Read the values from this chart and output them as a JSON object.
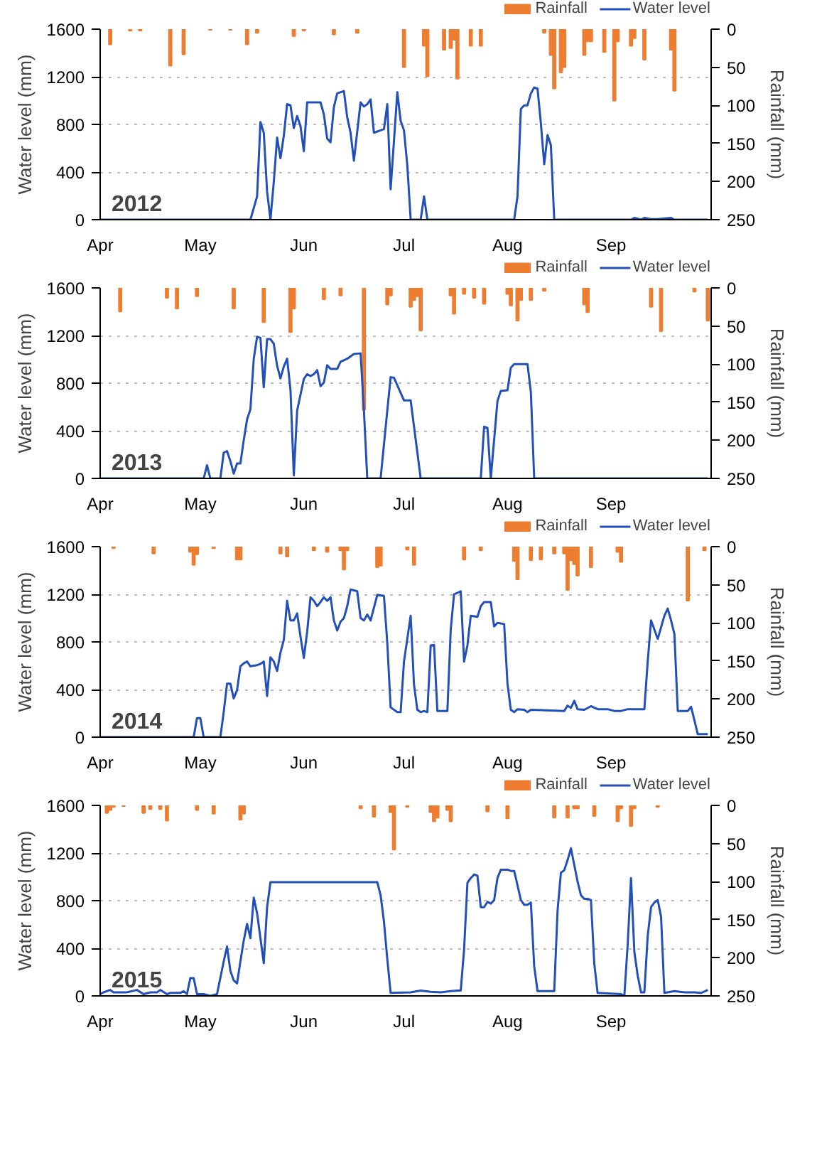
{
  "chart_data": [
    {
      "type": "line",
      "annotations": [
        "2012"
      ],
      "ylabel": "Water level (mm)",
      "y2label": "Rainfall (mm)",
      "xlim": [
        "2012-04-01",
        "2012-10-01"
      ],
      "xticks": [
        {
          "value": "2012-04-01",
          "label": "Apr"
        },
        {
          "value": "2012-05-01",
          "label": "May"
        },
        {
          "value": "2012-06-01",
          "label": "Jun"
        },
        {
          "value": "2012-07-01",
          "label": "Jul"
        },
        {
          "value": "2012-08-01",
          "label": "Aug"
        },
        {
          "value": "2012-09-01",
          "label": "Sep"
        }
      ],
      "ylim": [
        0,
        1600
      ],
      "yticks": [
        0,
        400,
        800,
        1200,
        1600
      ],
      "y2lim": [
        250,
        0
      ],
      "y2ticks": [
        0,
        50,
        100,
        150,
        200,
        250
      ],
      "grid": "y",
      "legend": "top right",
      "series": [
        {
          "name": "Rainfall",
          "type": "bar",
          "axis": "y2",
          "color": "#ed7d31",
          "x": [
            "2012-04-04",
            "2012-04-10",
            "2012-04-13",
            "2012-04-22",
            "2012-04-26",
            "2012-05-04",
            "2012-05-10",
            "2012-05-15",
            "2012-05-18",
            "2012-05-29",
            "2012-06-01",
            "2012-06-10",
            "2012-06-17",
            "2012-07-01",
            "2012-07-07",
            "2012-07-08",
            "2012-07-13",
            "2012-07-15",
            "2012-07-16",
            "2012-07-17",
            "2012-07-21",
            "2012-07-24",
            "2012-08-12",
            "2012-08-14",
            "2012-08-15",
            "2012-08-17",
            "2012-08-18",
            "2012-08-24",
            "2012-08-25",
            "2012-08-26",
            "2012-08-30",
            "2012-09-02",
            "2012-09-03",
            "2012-09-07",
            "2012-09-08",
            "2012-09-11",
            "2012-09-19",
            "2012-09-20"
          ],
          "values": [
            20,
            2,
            2,
            48,
            33,
            1,
            1,
            20,
            5,
            9,
            2,
            7,
            5,
            50,
            22,
            62,
            27,
            25,
            14,
            65,
            22,
            22,
            5,
            34,
            78,
            57,
            50,
            34,
            16,
            16,
            30,
            94,
            16,
            22,
            12,
            40,
            27,
            81
          ]
        },
        {
          "name": "Water level",
          "color": "#2250b8",
          "x": [
            "2012-04-01",
            "2012-05-16",
            "2012-05-18",
            "2012-05-19",
            "2012-05-20",
            "2012-05-21",
            "2012-05-22",
            "2012-05-23",
            "2012-05-24",
            "2012-05-25",
            "2012-05-26",
            "2012-05-27",
            "2012-05-28",
            "2012-05-29",
            "2012-05-30",
            "2012-05-31",
            "2012-06-01",
            "2012-06-02",
            "2012-06-06",
            "2012-06-07",
            "2012-06-08",
            "2012-06-09",
            "2012-06-10",
            "2012-06-11",
            "2012-06-13",
            "2012-06-14",
            "2012-06-15",
            "2012-06-16",
            "2012-06-18",
            "2012-06-19",
            "2012-06-20",
            "2012-06-21",
            "2012-06-22",
            "2012-06-25",
            "2012-06-26",
            "2012-06-27",
            "2012-06-29",
            "2012-06-30",
            "2012-07-01",
            "2012-07-02",
            "2012-07-03",
            "2012-07-06",
            "2012-07-07",
            "2012-07-08",
            "2012-08-03",
            "2012-08-04",
            "2012-08-05",
            "2012-08-06",
            "2012-08-07",
            "2012-08-08",
            "2012-08-09",
            "2012-08-10",
            "2012-08-11",
            "2012-08-12",
            "2012-08-13",
            "2012-08-14",
            "2012-08-15",
            "2012-09-07",
            "2012-09-08",
            "2012-09-10",
            "2012-09-11",
            "2012-09-13",
            "2012-09-15",
            "2012-09-19",
            "2012-09-20",
            "2012-09-30"
          ],
          "values": [
            0,
            0,
            195,
            820,
            730,
            235,
            0,
            315,
            690,
            515,
            705,
            970,
            960,
            770,
            870,
            785,
            575,
            985,
            985,
            885,
            680,
            650,
            945,
            1060,
            1080,
            860,
            730,
            495,
            985,
            950,
            970,
            1010,
            730,
            760,
            970,
            255,
            1070,
            830,
            750,
            455,
            0,
            0,
            195,
            0,
            0,
            195,
            930,
            960,
            960,
            1060,
            1110,
            1100,
            810,
            465,
            710,
            625,
            0,
            0,
            15,
            0,
            15,
            5,
            5,
            15,
            0,
            0
          ]
        }
      ]
    },
    {
      "type": "line",
      "annotations": [
        "2013"
      ],
      "ylabel": "Water level (mm)",
      "y2label": "Rainfall (mm)",
      "xlim": [
        "2013-04-01",
        "2013-10-01"
      ],
      "xticks": [
        {
          "value": "2013-04-01",
          "label": "Apr"
        },
        {
          "value": "2013-05-01",
          "label": "May"
        },
        {
          "value": "2013-06-01",
          "label": "Jun"
        },
        {
          "value": "2013-07-01",
          "label": "Jul"
        },
        {
          "value": "2013-08-01",
          "label": "Aug"
        },
        {
          "value": "2013-09-01",
          "label": "Sep"
        }
      ],
      "ylim": [
        0,
        1600
      ],
      "yticks": [
        0,
        400,
        800,
        1200,
        1600
      ],
      "y2lim": [
        250,
        0
      ],
      "y2ticks": [
        0,
        50,
        100,
        150,
        200,
        250
      ],
      "grid": "y",
      "legend": "top right",
      "series": [
        {
          "name": "Rainfall",
          "type": "bar",
          "axis": "y2",
          "color": "#ed7d31",
          "x": [
            "2013-04-07",
            "2013-04-21",
            "2013-04-24",
            "2013-04-30",
            "2013-05-11",
            "2013-05-20",
            "2013-05-28",
            "2013-05-29",
            "2013-06-07",
            "2013-06-12",
            "2013-06-19",
            "2013-06-26",
            "2013-06-27",
            "2013-07-03",
            "2013-07-04",
            "2013-07-05",
            "2013-07-06",
            "2013-07-15",
            "2013-07-16",
            "2013-07-19",
            "2013-07-22",
            "2013-07-25",
            "2013-08-01",
            "2013-08-02",
            "2013-08-04",
            "2013-08-05",
            "2013-08-08",
            "2013-08-12",
            "2013-08-24",
            "2013-08-25",
            "2013-09-13",
            "2013-09-16",
            "2013-09-26",
            "2013-09-30"
          ],
          "values": [
            31,
            13,
            27,
            11,
            27,
            45,
            58,
            27,
            15,
            10,
            160,
            22,
            10,
            25,
            16,
            11,
            56,
            10,
            34,
            8,
            13,
            21,
            8,
            23,
            43,
            16,
            16,
            4,
            22,
            32,
            25,
            57,
            5,
            43
          ]
        },
        {
          "name": "Water level",
          "color": "#2250b8",
          "x": [
            "2013-04-01",
            "2013-05-02",
            "2013-05-03",
            "2013-05-04",
            "2013-05-07",
            "2013-05-08",
            "2013-05-09",
            "2013-05-10",
            "2013-05-11",
            "2013-05-12",
            "2013-05-13",
            "2013-05-14",
            "2013-05-15",
            "2013-05-16",
            "2013-05-17",
            "2013-05-18",
            "2013-05-19",
            "2013-05-20",
            "2013-05-21",
            "2013-05-22",
            "2013-05-23",
            "2013-05-24",
            "2013-05-25",
            "2013-05-26",
            "2013-05-27",
            "2013-05-28",
            "2013-05-29",
            "2013-05-30",
            "2013-06-01",
            "2013-06-02",
            "2013-06-03",
            "2013-06-04",
            "2013-06-05",
            "2013-06-06",
            "2013-06-07",
            "2013-06-08",
            "2013-06-09",
            "2013-06-11",
            "2013-06-12",
            "2013-06-14",
            "2013-06-16",
            "2013-06-18",
            "2013-06-19",
            "2013-06-20",
            "2013-06-24",
            "2013-06-26",
            "2013-06-27",
            "2013-06-28",
            "2013-07-01",
            "2013-07-03",
            "2013-07-06",
            "2013-07-24",
            "2013-07-25",
            "2013-07-26",
            "2013-07-27",
            "2013-07-29",
            "2013-07-30",
            "2013-08-01",
            "2013-08-02",
            "2013-08-03",
            "2013-08-07",
            "2013-08-08",
            "2013-08-09",
            "2013-09-30"
          ],
          "values": [
            0,
            0,
            110,
            0,
            0,
            215,
            230,
            145,
            40,
            125,
            125,
            320,
            495,
            580,
            1005,
            1190,
            1180,
            765,
            1170,
            1170,
            1130,
            945,
            840,
            940,
            1005,
            745,
            25,
            570,
            835,
            875,
            860,
            875,
            910,
            775,
            805,
            950,
            920,
            920,
            980,
            1005,
            1045,
            1050,
            570,
            0,
            0,
            570,
            850,
            845,
            655,
            655,
            0,
            0,
            435,
            425,
            0,
            650,
            735,
            740,
            930,
            960,
            960,
            725,
            0,
            0
          ]
        }
      ]
    },
    {
      "type": "line",
      "annotations": [
        "2014"
      ],
      "ylabel": "Water level (mm)",
      "y2label": "Rainfall (mm)",
      "xlim": [
        "2014-04-01",
        "2014-10-01"
      ],
      "xticks": [
        {
          "value": "2014-04-01",
          "label": "Apr"
        },
        {
          "value": "2014-05-01",
          "label": "May"
        },
        {
          "value": "2014-06-01",
          "label": "Jun"
        },
        {
          "value": "2014-07-01",
          "label": "Jul"
        },
        {
          "value": "2014-08-01",
          "label": "Aug"
        },
        {
          "value": "2014-09-01",
          "label": "Sep"
        }
      ],
      "ylim": [
        0,
        1600
      ],
      "yticks": [
        0,
        400,
        800,
        1200,
        1600
      ],
      "y2lim": [
        250,
        0
      ],
      "y2ticks": [
        0,
        50,
        100,
        150,
        200,
        250
      ],
      "grid": "y",
      "legend": "top right",
      "series": [
        {
          "name": "Rainfall",
          "type": "bar",
          "axis": "y2",
          "color": "#ed7d31",
          "x": [
            "2014-04-05",
            "2014-04-17",
            "2014-04-28",
            "2014-04-29",
            "2014-04-30",
            "2014-05-05",
            "2014-05-12",
            "2014-05-13",
            "2014-05-25",
            "2014-05-27",
            "2014-06-04",
            "2014-06-08",
            "2014-06-12",
            "2014-06-13",
            "2014-06-14",
            "2014-06-23",
            "2014-06-24",
            "2014-07-02",
            "2014-07-04",
            "2014-07-19",
            "2014-07-24",
            "2014-08-03",
            "2014-08-04",
            "2014-08-08",
            "2014-08-11",
            "2014-08-15",
            "2014-08-18",
            "2014-08-19",
            "2014-08-20",
            "2014-08-21",
            "2014-08-22",
            "2014-08-26",
            "2014-09-03",
            "2014-09-04",
            "2014-09-24",
            "2014-09-29"
          ],
          "values": [
            2,
            9,
            7,
            24,
            10,
            2,
            17,
            17,
            9,
            13,
            5,
            7,
            5,
            30,
            5,
            27,
            25,
            4,
            24,
            17,
            5,
            19,
            43,
            18,
            17,
            9,
            9,
            57,
            18,
            23,
            38,
            27,
            7,
            20,
            71,
            5
          ]
        },
        {
          "name": "Water level",
          "color": "#2250b8",
          "x": [
            "2014-04-01",
            "2014-04-29",
            "2014-04-30",
            "2014-05-01",
            "2014-05-02",
            "2014-05-07",
            "2014-05-08",
            "2014-05-09",
            "2014-05-10",
            "2014-05-11",
            "2014-05-12",
            "2014-05-13",
            "2014-05-14",
            "2014-05-15",
            "2014-05-16",
            "2014-05-18",
            "2014-05-19",
            "2014-05-20",
            "2014-05-21",
            "2014-05-22",
            "2014-05-23",
            "2014-05-24",
            "2014-05-25",
            "2014-05-26",
            "2014-05-27",
            "2014-05-28",
            "2014-05-29",
            "2014-05-30",
            "2014-05-31",
            "2014-06-01",
            "2014-06-02",
            "2014-06-03",
            "2014-06-04",
            "2014-06-05",
            "2014-06-06",
            "2014-06-07",
            "2014-06-08",
            "2014-06-09",
            "2014-06-10",
            "2014-06-11",
            "2014-06-12",
            "2014-06-13",
            "2014-06-14",
            "2014-06-15",
            "2014-06-17",
            "2014-06-18",
            "2014-06-19",
            "2014-06-20",
            "2014-06-21",
            "2014-06-23",
            "2014-06-25",
            "2014-06-26",
            "2014-06-27",
            "2014-06-29",
            "2014-06-30",
            "2014-07-01",
            "2014-07-03",
            "2014-07-04",
            "2014-07-05",
            "2014-07-06",
            "2014-07-07",
            "2014-07-08",
            "2014-07-09",
            "2014-07-10",
            "2014-07-11",
            "2014-07-14",
            "2014-07-15",
            "2014-07-16",
            "2014-07-18",
            "2014-07-19",
            "2014-07-20",
            "2014-07-21",
            "2014-07-23",
            "2014-07-24",
            "2014-07-25",
            "2014-07-27",
            "2014-07-28",
            "2014-07-29",
            "2014-07-31",
            "2014-08-01",
            "2014-08-02",
            "2014-08-03",
            "2014-08-04",
            "2014-08-06",
            "2014-08-07",
            "2014-08-08",
            "2014-08-18",
            "2014-08-19",
            "2014-08-20",
            "2014-08-21",
            "2014-08-22",
            "2014-08-24",
            "2014-08-26",
            "2014-08-28",
            "2014-08-31",
            "2014-09-02",
            "2014-09-04",
            "2014-09-06",
            "2014-09-11",
            "2014-09-12",
            "2014-09-13",
            "2014-09-15",
            "2014-09-17",
            "2014-09-18",
            "2014-09-19",
            "2014-09-20",
            "2014-09-21",
            "2014-09-24",
            "2014-09-25",
            "2014-09-27",
            "2014-09-30"
          ],
          "values": [
            0,
            0,
            160,
            160,
            0,
            0,
            210,
            450,
            450,
            325,
            395,
            595,
            620,
            635,
            595,
            605,
            615,
            635,
            345,
            670,
            635,
            555,
            710,
            815,
            1145,
            980,
            980,
            1040,
            845,
            665,
            885,
            1175,
            1145,
            1100,
            1135,
            1175,
            1145,
            1175,
            980,
            895,
            970,
            1000,
            1100,
            1240,
            1225,
            1000,
            980,
            1030,
            980,
            1195,
            1185,
            790,
            250,
            210,
            210,
            635,
            1020,
            440,
            230,
            210,
            220,
            210,
            770,
            775,
            220,
            220,
            905,
            1200,
            1225,
            635,
            770,
            1020,
            1010,
            1100,
            1135,
            1135,
            930,
            960,
            950,
            450,
            230,
            210,
            235,
            230,
            210,
            230,
            220,
            265,
            245,
            305,
            235,
            230,
            260,
            235,
            235,
            220,
            220,
            235,
            235,
            635,
            980,
            825,
            1020,
            1080,
            980,
            865,
            220,
            220,
            255,
            25,
            25
          ]
        }
      ]
    },
    {
      "type": "line",
      "annotations": [
        "2015"
      ],
      "ylabel": "Water level (mm)",
      "y2label": "Rainfall (mm)",
      "xlim": [
        "2015-04-01",
        "2015-10-01"
      ],
      "xticks": [
        {
          "value": "2015-04-01",
          "label": "Apr"
        },
        {
          "value": "2015-05-01",
          "label": "May"
        },
        {
          "value": "2015-06-01",
          "label": "Jun"
        },
        {
          "value": "2015-07-01",
          "label": "Jul"
        },
        {
          "value": "2015-08-01",
          "label": "Aug"
        },
        {
          "value": "2015-09-01",
          "label": "Sep"
        }
      ],
      "ylim": [
        0,
        1600
      ],
      "yticks": [
        0,
        400,
        800,
        1200,
        1600
      ],
      "y2lim": [
        250,
        0
      ],
      "y2ticks": [
        0,
        50,
        100,
        150,
        200,
        250
      ],
      "grid": "y",
      "legend": "top right",
      "series": [
        {
          "name": "Rainfall",
          "type": "bar",
          "axis": "y2",
          "color": "#ed7d31",
          "x": [
            "2015-04-03",
            "2015-04-04",
            "2015-04-05",
            "2015-04-08",
            "2015-04-14",
            "2015-04-16",
            "2015-04-19",
            "2015-04-21",
            "2015-04-30",
            "2015-05-05",
            "2015-05-13",
            "2015-05-14",
            "2015-06-18",
            "2015-06-22",
            "2015-06-27",
            "2015-06-28",
            "2015-07-02",
            "2015-07-09",
            "2015-07-10",
            "2015-07-11",
            "2015-07-14",
            "2015-07-15",
            "2015-07-26",
            "2015-08-01",
            "2015-08-15",
            "2015-08-19",
            "2015-08-21",
            "2015-08-22",
            "2015-08-27",
            "2015-09-03",
            "2015-09-04",
            "2015-09-07",
            "2015-09-08",
            "2015-09-15"
          ],
          "values": [
            10,
            6,
            2,
            1,
            10,
            5,
            5,
            20,
            6,
            11,
            19,
            11,
            4,
            15,
            9,
            58,
            2,
            9,
            21,
            16,
            6,
            21,
            8,
            17,
            16,
            16,
            4,
            4,
            14,
            21,
            4,
            27,
            4,
            2
          ]
        },
        {
          "name": "Water level",
          "color": "#2250b8",
          "x": [
            "2015-04-01",
            "2015-04-02",
            "2015-04-04",
            "2015-04-05",
            "2015-04-09",
            "2015-04-12",
            "2015-04-14",
            "2015-04-16",
            "2015-04-18",
            "2015-04-19",
            "2015-04-21",
            "2015-04-22",
            "2015-04-25",
            "2015-04-26",
            "2015-04-27",
            "2015-04-28",
            "2015-04-29",
            "2015-04-30",
            "2015-05-02",
            "2015-05-04",
            "2015-05-06",
            "2015-05-08",
            "2015-05-09",
            "2015-05-10",
            "2015-05-11",
            "2015-05-12",
            "2015-05-13",
            "2015-05-14",
            "2015-05-15",
            "2015-05-16",
            "2015-05-17",
            "2015-05-18",
            "2015-05-19",
            "2015-05-20",
            "2015-05-21",
            "2015-05-22",
            "2015-06-23",
            "2015-06-24",
            "2015-06-25",
            "2015-06-26",
            "2015-06-27",
            "2015-07-03",
            "2015-07-06",
            "2015-07-09",
            "2015-07-12",
            "2015-07-15",
            "2015-07-17",
            "2015-07-18",
            "2015-07-19",
            "2015-07-20",
            "2015-07-21",
            "2015-07-22",
            "2015-07-23",
            "2015-07-24",
            "2015-07-25",
            "2015-07-26",
            "2015-07-27",
            "2015-07-28",
            "2015-07-29",
            "2015-07-30",
            "2015-08-01",
            "2015-08-02",
            "2015-08-03",
            "2015-08-04",
            "2015-08-05",
            "2015-08-06",
            "2015-08-07",
            "2015-08-08",
            "2015-08-09",
            "2015-08-10",
            "2015-08-15",
            "2015-08-16",
            "2015-08-17",
            "2015-08-18",
            "2015-08-19",
            "2015-08-20",
            "2015-08-21",
            "2015-08-22",
            "2015-08-23",
            "2015-08-24",
            "2015-08-25",
            "2015-08-26",
            "2015-08-27",
            "2015-08-28",
            "2015-09-04",
            "2015-09-05",
            "2015-09-06",
            "2015-09-07",
            "2015-09-08",
            "2015-09-09",
            "2015-09-10",
            "2015-09-11",
            "2015-09-12",
            "2015-09-13",
            "2015-09-14",
            "2015-09-15",
            "2015-09-16",
            "2015-09-17",
            "2015-09-20",
            "2015-09-23",
            "2015-09-26",
            "2015-09-28",
            "2015-09-30"
          ],
          "values": [
            15,
            30,
            50,
            30,
            30,
            50,
            15,
            30,
            30,
            50,
            15,
            25,
            25,
            40,
            15,
            150,
            150,
            15,
            15,
            0,
            15,
            290,
            415,
            210,
            130,
            105,
            290,
            465,
            605,
            485,
            825,
            695,
            485,
            275,
            745,
            955,
            955,
            845,
            625,
            310,
            25,
            30,
            45,
            35,
            30,
            40,
            45,
            45,
            390,
            950,
            990,
            1020,
            1010,
            745,
            745,
            790,
            775,
            805,
            990,
            1060,
            1060,
            1050,
            1050,
            930,
            805,
            765,
            765,
            785,
            250,
            40,
            40,
            715,
            1035,
            1055,
            1140,
            1240,
            1100,
            960,
            845,
            815,
            815,
            805,
            270,
            25,
            15,
            0,
            430,
            990,
            370,
            170,
            30,
            30,
            505,
            745,
            785,
            805,
            665,
            25,
            40,
            30,
            30,
            25,
            50
          ]
        }
      ]
    }
  ]
}
